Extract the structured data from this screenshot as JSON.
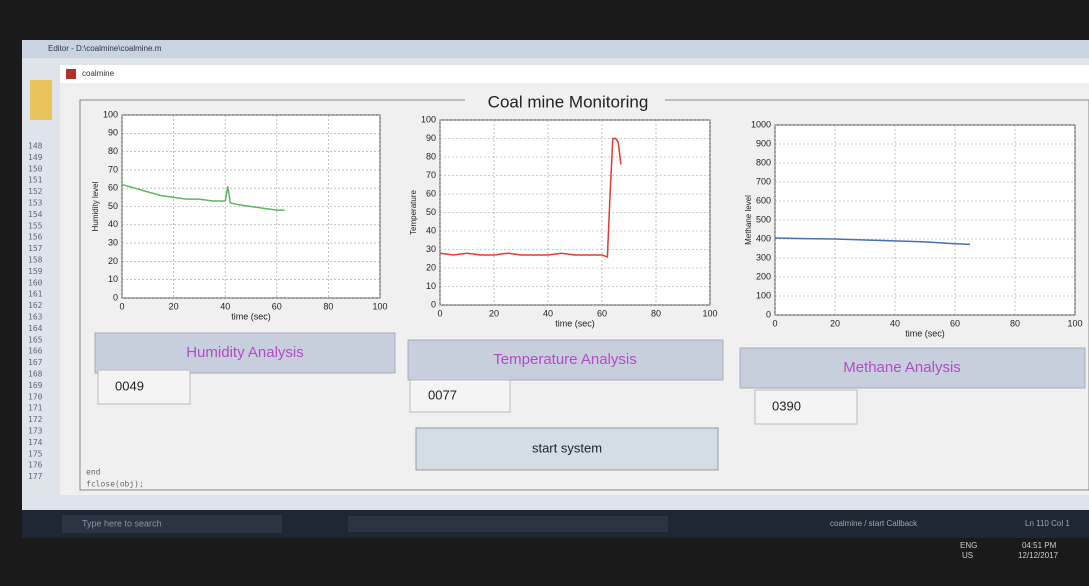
{
  "editor_title": "Editor - D:\\coalmine\\coalmine.m",
  "window_title": "coalmine",
  "panel_title": "Coal mine Monitoring",
  "editor_line_numbers": [
    "148",
    "149",
    "150",
    "151",
    "152",
    "153",
    "154",
    "155",
    "156",
    "157",
    "158",
    "159",
    "160",
    "161",
    "162",
    "163",
    "164",
    "165",
    "166",
    "167",
    "168",
    "169",
    "170",
    "171",
    "172",
    "173",
    "174",
    "175",
    "176",
    "177"
  ],
  "editor_code": [
    "end",
    "fclose(obj);"
  ],
  "chart_data": [
    {
      "type": "line",
      "ylabel": "Humidity level",
      "xlabel": "time (sec)",
      "xlim": [
        0,
        100
      ],
      "xticks": [
        0,
        20,
        40,
        60,
        80,
        100
      ],
      "ylim": [
        0,
        100
      ],
      "yticks": [
        0,
        10,
        20,
        30,
        40,
        50,
        60,
        70,
        80,
        90,
        100
      ],
      "grid": true,
      "color": "#5cb85c",
      "x": [
        0,
        5,
        10,
        15,
        20,
        25,
        30,
        35,
        40,
        41,
        42,
        45,
        50,
        55,
        60,
        63
      ],
      "values": [
        62,
        60,
        58,
        56,
        55,
        54,
        54,
        53,
        53,
        61,
        52,
        51,
        50,
        49,
        48,
        48
      ]
    },
    {
      "type": "line",
      "ylabel": "Temperature",
      "xlabel": "time (sec)",
      "xlim": [
        0,
        100
      ],
      "xticks": [
        0,
        20,
        40,
        60,
        80,
        100
      ],
      "ylim": [
        0,
        100
      ],
      "yticks": [
        0,
        10,
        20,
        30,
        40,
        50,
        60,
        70,
        80,
        90,
        100
      ],
      "grid": true,
      "color": "#e53935",
      "x": [
        0,
        5,
        10,
        15,
        20,
        25,
        30,
        35,
        40,
        45,
        50,
        55,
        60,
        62,
        63,
        64,
        65,
        66,
        67
      ],
      "values": [
        28,
        27,
        28,
        27,
        27,
        28,
        27,
        27,
        27,
        28,
        27,
        27,
        27,
        26,
        60,
        90,
        90,
        88,
        76
      ]
    },
    {
      "type": "line",
      "ylabel": "Methane level",
      "xlabel": "time (sec)",
      "xlim": [
        0,
        100
      ],
      "xticks": [
        0,
        20,
        40,
        60,
        80,
        100
      ],
      "ylim": [
        0,
        1000
      ],
      "yticks": [
        0,
        100,
        200,
        300,
        400,
        500,
        600,
        700,
        800,
        900,
        1000
      ],
      "grid": true,
      "color": "#4a6fb5",
      "x": [
        0,
        10,
        20,
        30,
        40,
        50,
        60,
        65
      ],
      "values": [
        405,
        402,
        400,
        395,
        390,
        385,
        375,
        372
      ]
    }
  ],
  "buttons": [
    "Humidity Analysis",
    "Temperature Analysis",
    "Methane Analysis",
    "start system"
  ],
  "readouts": [
    "0049",
    "0077",
    "0390"
  ],
  "taskbar": {
    "search": "Type here to search",
    "status": "coalmine / start Callback",
    "cursor": "Ln 110 Col 1",
    "lang": "ENG",
    "region": "US",
    "time": "04:51 PM",
    "date": "12/12/2017"
  }
}
